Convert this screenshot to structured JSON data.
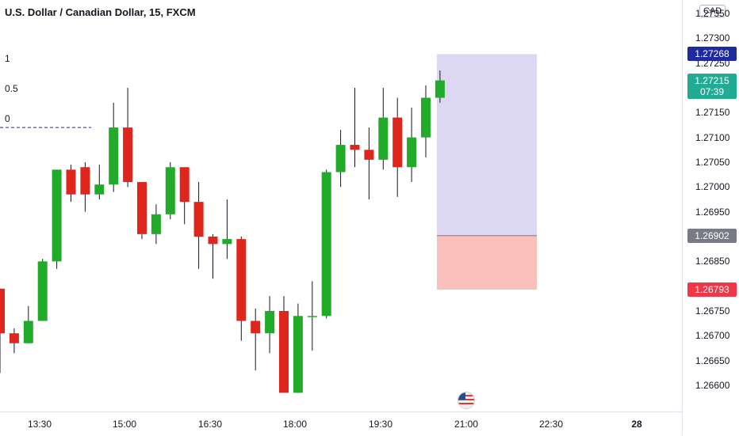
{
  "title": "U.S. Dollar / Canadian Dollar, 15, FXCM",
  "fib_levels": [
    "1",
    "0.5",
    "0"
  ],
  "currency_label": "CAD",
  "price_axis": {
    "ticks": [
      "1.27350",
      "1.27300",
      "1.27250",
      "1.27200",
      "1.27150",
      "1.27100",
      "1.27050",
      "1.27000",
      "1.26950",
      "1.26900",
      "1.26850",
      "1.26800",
      "1.26750",
      "1.26700",
      "1.26650",
      "1.26600"
    ],
    "labels": [
      {
        "price": "1.27268",
        "color": "#1e2a9e"
      },
      {
        "price": "1.27215",
        "countdown": "07:39",
        "color": "#22ab94"
      },
      {
        "price": "1.26902",
        "color": "#787b86"
      },
      {
        "price": "1.26793",
        "color": "#f23645"
      }
    ]
  },
  "time_axis": {
    "labels": [
      {
        "text": "13:30",
        "bold": false
      },
      {
        "text": "15:00",
        "bold": false
      },
      {
        "text": "16:30",
        "bold": false
      },
      {
        "text": "18:00",
        "bold": false
      },
      {
        "text": "19:30",
        "bold": false
      },
      {
        "text": "21:00",
        "bold": false
      },
      {
        "text": "22:30",
        "bold": false
      },
      {
        "text": "28",
        "bold": true
      }
    ]
  },
  "colors": {
    "up": "#22ab2a",
    "down": "#e0251c",
    "target_zone": "#dcd8f3",
    "stop_zone": "#f9c0bc",
    "dashed_line": "#1e2a9e"
  },
  "icons": [
    "us-flag-icon"
  ],
  "chart_data": {
    "type": "candlestick",
    "title": "U.S. Dollar / Canadian Dollar, 15, FXCM",
    "interval": "15",
    "ylim": [
      1.26585,
      1.2738
    ],
    "candles": [
      {
        "o": 1.26795,
        "h": 1.26795,
        "l": 1.26625,
        "c": 1.26705
      },
      {
        "o": 1.26705,
        "h": 1.26715,
        "l": 1.26665,
        "c": 1.26685
      },
      {
        "o": 1.26685,
        "h": 1.2676,
        "l": 1.26685,
        "c": 1.2673
      },
      {
        "o": 1.2673,
        "h": 1.26855,
        "l": 1.2673,
        "c": 1.2685
      },
      {
        "o": 1.2685,
        "h": 1.27035,
        "l": 1.26835,
        "c": 1.27035
      },
      {
        "o": 1.27035,
        "h": 1.27045,
        "l": 1.2697,
        "c": 1.26985
      },
      {
        "o": 1.2704,
        "h": 1.2705,
        "l": 1.2695,
        "c": 1.26985
      },
      {
        "o": 1.26985,
        "h": 1.27045,
        "l": 1.26975,
        "c": 1.27005
      },
      {
        "o": 1.27005,
        "h": 1.2717,
        "l": 1.2699,
        "c": 1.2712
      },
      {
        "o": 1.2712,
        "h": 1.272,
        "l": 1.27,
        "c": 1.2701
      },
      {
        "o": 1.2701,
        "h": 1.2701,
        "l": 1.26895,
        "c": 1.26905
      },
      {
        "o": 1.26905,
        "h": 1.26965,
        "l": 1.26885,
        "c": 1.26945
      },
      {
        "o": 1.26945,
        "h": 1.2705,
        "l": 1.26935,
        "c": 1.2704
      },
      {
        "o": 1.2704,
        "h": 1.2704,
        "l": 1.26925,
        "c": 1.2697
      },
      {
        "o": 1.2697,
        "h": 1.2701,
        "l": 1.26835,
        "c": 1.269
      },
      {
        "o": 1.269,
        "h": 1.26905,
        "l": 1.26815,
        "c": 1.26885
      },
      {
        "o": 1.26885,
        "h": 1.26975,
        "l": 1.26855,
        "c": 1.26895
      },
      {
        "o": 1.26895,
        "h": 1.269,
        "l": 1.2669,
        "c": 1.2673
      },
      {
        "o": 1.2673,
        "h": 1.26755,
        "l": 1.2663,
        "c": 1.26705
      },
      {
        "o": 1.26705,
        "h": 1.2678,
        "l": 1.26665,
        "c": 1.2675
      },
      {
        "o": 1.2675,
        "h": 1.2678,
        "l": 1.26585,
        "c": 1.26585
      },
      {
        "o": 1.26585,
        "h": 1.26765,
        "l": 1.26585,
        "c": 1.2674
      },
      {
        "o": 1.2674,
        "h": 1.2681,
        "l": 1.2667,
        "c": 1.2674
      },
      {
        "o": 1.2674,
        "h": 1.27035,
        "l": 1.26735,
        "c": 1.2703
      },
      {
        "o": 1.2703,
        "h": 1.27115,
        "l": 1.27,
        "c": 1.27085
      },
      {
        "o": 1.27085,
        "h": 1.272,
        "l": 1.2704,
        "c": 1.27075
      },
      {
        "o": 1.27075,
        "h": 1.2712,
        "l": 1.26975,
        "c": 1.27055
      },
      {
        "o": 1.27055,
        "h": 1.272,
        "l": 1.27035,
        "c": 1.2714
      },
      {
        "o": 1.2714,
        "h": 1.2718,
        "l": 1.2698,
        "c": 1.2704
      },
      {
        "o": 1.2704,
        "h": 1.2716,
        "l": 1.2701,
        "c": 1.271
      },
      {
        "o": 1.271,
        "h": 1.27205,
        "l": 1.2706,
        "c": 1.2718
      },
      {
        "o": 1.2718,
        "h": 1.27235,
        "l": 1.2717,
        "c": 1.27215
      }
    ],
    "fib_zero_price": 1.2712,
    "position_tool": {
      "target": 1.27268,
      "entry": 1.26902,
      "stop": 1.26793
    }
  }
}
